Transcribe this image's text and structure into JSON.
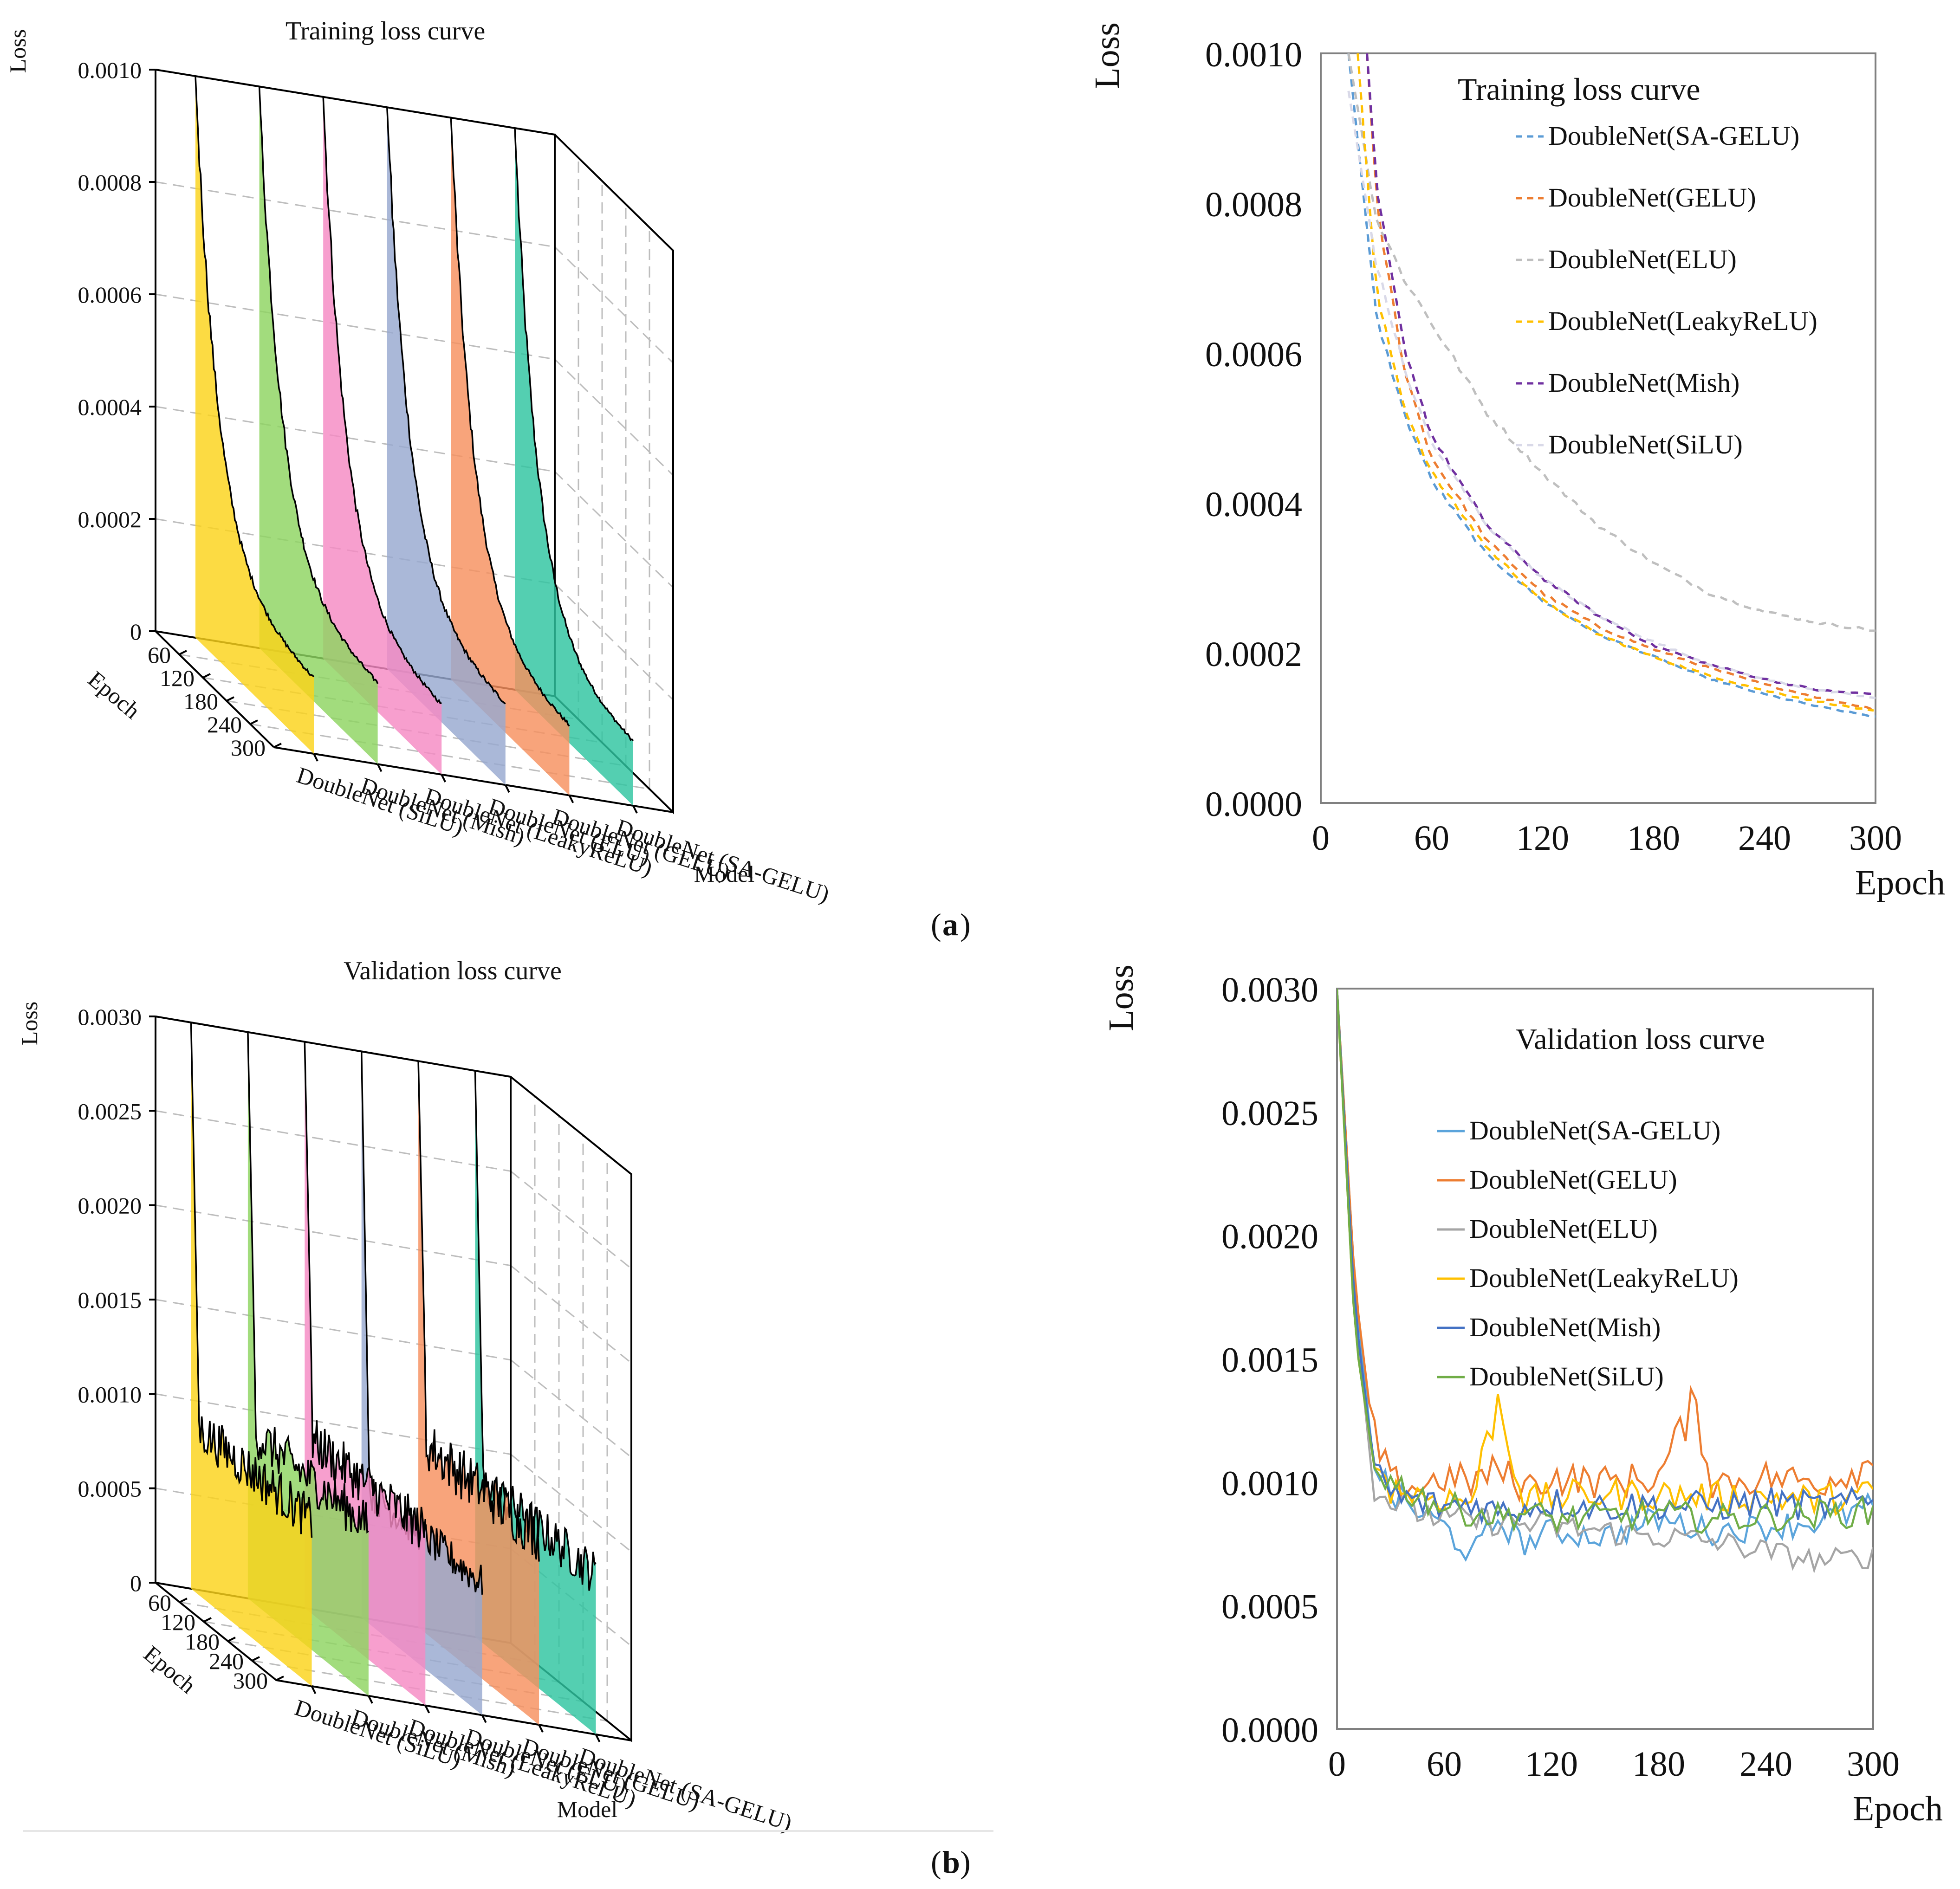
{
  "panel_labels": {
    "a": "a",
    "b": "b"
  },
  "chart_data": [
    {
      "id": "a3d",
      "type": "area",
      "title": "Training loss curve",
      "zlabel": "Loss",
      "xlabel": "Epoch",
      "ylabel": "Model",
      "zticks": [
        "0",
        "0.0002",
        "0.0004",
        "0.0006",
        "0.0008",
        "0.0010"
      ],
      "zlim": [
        0,
        0.001
      ],
      "epoch_ticks": [
        "60",
        "120",
        "180",
        "240",
        "300"
      ],
      "models": [
        {
          "name": "DoubleNet (SA-GELU)",
          "color": "#2EC4A0",
          "y0": 0.001,
          "yend": 0.00011
        },
        {
          "name": "DoubleNet (GELU)",
          "color": "#F7905E",
          "y0": 0.001,
          "yend": 0.00012
        },
        {
          "name": "DoubleNet (ELU)",
          "color": "#97A8D0",
          "y0": 0.001,
          "yend": 0.00014
        },
        {
          "name": "DoubleNet (LeakyReLU)",
          "color": "#F58AC3",
          "y0": 0.001,
          "yend": 0.00012
        },
        {
          "name": "DoubleNet (Mish)",
          "color": "#8ED460",
          "y0": 0.001,
          "yend": 0.00014
        },
        {
          "name": "DoubleNet (SiLU)",
          "color": "#FBD31A",
          "y0": 0.001,
          "yend": 0.00013
        }
      ]
    },
    {
      "id": "a2d",
      "type": "line",
      "title": "Training loss curve",
      "xlabel": "Epoch",
      "ylabel": "Loss",
      "xlim": [
        0,
        300
      ],
      "ylim": [
        0,
        0.001
      ],
      "xticks": [
        "0",
        "60",
        "120",
        "180",
        "240",
        "300"
      ],
      "yticks": [
        "0.0000",
        "0.0002",
        "0.0004",
        "0.0006",
        "0.0008",
        "0.0010"
      ],
      "dashed": true,
      "series": [
        {
          "name": "DoubleNet(SA-GELU)",
          "color": "#5B9BD5",
          "x": [
            15,
            30,
            45,
            60,
            90,
            120,
            150,
            180,
            210,
            240,
            270,
            300
          ],
          "values": [
            0.001,
            0.00065,
            0.00052,
            0.00043,
            0.00033,
            0.00027,
            0.000225,
            0.000195,
            0.000165,
            0.000145,
            0.000128,
            0.000115
          ]
        },
        {
          "name": "DoubleNet(GELU)",
          "color": "#ED7D31",
          "x": [
            25,
            30,
            45,
            60,
            90,
            120,
            150,
            180,
            210,
            240,
            270,
            300
          ],
          "values": [
            0.001,
            0.0008,
            0.00058,
            0.00046,
            0.00035,
            0.00028,
            0.000235,
            0.000205,
            0.00018,
            0.000158,
            0.00014,
            0.000125
          ]
        },
        {
          "name": "DoubleNet(ELU)",
          "color": "#BFBFBF",
          "x": [
            15,
            30,
            45,
            60,
            90,
            120,
            150,
            180,
            210,
            240,
            270,
            300
          ],
          "values": [
            0.001,
            0.00078,
            0.0007,
            0.00064,
            0.00052,
            0.00044,
            0.00037,
            0.00032,
            0.00028,
            0.000255,
            0.00024,
            0.00023
          ]
        },
        {
          "name": "DoubleNet(LeakyReLU)",
          "color": "#FFC000",
          "x": [
            20,
            30,
            45,
            60,
            90,
            120,
            150,
            180,
            210,
            240,
            270,
            300
          ],
          "values": [
            0.001,
            0.00068,
            0.00053,
            0.00044,
            0.00034,
            0.00027,
            0.000225,
            0.000195,
            0.00017,
            0.00015,
            0.000135,
            0.000122
          ]
        },
        {
          "name": "DoubleNet(Mish)",
          "color": "#7030A0",
          "x": [
            25,
            30,
            45,
            60,
            90,
            120,
            150,
            180,
            210,
            240,
            270,
            300
          ],
          "values": [
            0.001,
            0.00082,
            0.00061,
            0.00049,
            0.00037,
            0.0003,
            0.00025,
            0.00021,
            0.000185,
            0.000165,
            0.00015,
            0.000145
          ]
        },
        {
          "name": "DoubleNet(SiLU)",
          "color": "#D9D9E8",
          "x": [
            15,
            30,
            45,
            60,
            90,
            120,
            150,
            180,
            210,
            240,
            270,
            300
          ],
          "values": [
            0.00095,
            0.00072,
            0.00058,
            0.00048,
            0.00037,
            0.0003,
            0.00025,
            0.000215,
            0.000185,
            0.000165,
            0.00015,
            0.00014
          ]
        }
      ]
    },
    {
      "id": "b3d",
      "type": "area",
      "title": "Validation loss curve",
      "zlabel": "Loss",
      "xlabel": "Epoch",
      "ylabel": "Model",
      "zticks": [
        "0",
        "0.0005",
        "0.0010",
        "0.0015",
        "0.0020",
        "0.0025",
        "0.0030"
      ],
      "zlim": [
        0,
        0.003
      ],
      "epoch_ticks": [
        "60",
        "120",
        "180",
        "240",
        "300"
      ],
      "models": [
        {
          "name": "DoubleNet (SA-GELU)",
          "color": "#2EC4A0",
          "y0": 0.003,
          "yend": 0.00085
        },
        {
          "name": "DoubleNet (GELU)",
          "color": "#F7905E",
          "y0": 0.003,
          "yend": 0.001
        },
        {
          "name": "DoubleNet (ELU)",
          "color": "#97A8D0",
          "y0": 0.003,
          "yend": 0.0007
        },
        {
          "name": "DoubleNet (LeakyReLU)",
          "color": "#F58AC3",
          "y0": 0.003,
          "yend": 0.00092
        },
        {
          "name": "DoubleNet (Mish)",
          "color": "#8ED460",
          "y0": 0.003,
          "yend": 0.0009
        },
        {
          "name": "DoubleNet (SiLU)",
          "color": "#FBD31A",
          "y0": 0.003,
          "yend": 0.00088
        }
      ]
    },
    {
      "id": "b2d",
      "type": "line",
      "title": "Validation loss curve",
      "xlabel": "Epoch",
      "ylabel": "Loss",
      "xlim": [
        0,
        300
      ],
      "ylim": [
        0,
        0.003
      ],
      "xticks": [
        "0",
        "60",
        "120",
        "180",
        "240",
        "300"
      ],
      "yticks": [
        "0.0000",
        "0.0005",
        "0.0010",
        "0.0015",
        "0.0020",
        "0.0025",
        "0.0030"
      ],
      "dashed": false,
      "series": [
        {
          "name": "DoubleNet(SA-GELU)",
          "color": "#5BA4DB",
          "x": [
            0,
            10,
            20,
            30,
            45,
            60,
            75,
            90,
            105,
            120,
            150,
            180,
            210,
            240,
            270,
            300
          ],
          "values": [
            0.003,
            0.0018,
            0.0011,
            0.00095,
            0.00088,
            0.00082,
            0.0007,
            0.00085,
            0.00075,
            0.0008,
            0.00078,
            0.00085,
            0.0008,
            0.00082,
            0.00084,
            0.0009
          ]
        },
        {
          "name": "DoubleNet(GELU)",
          "color": "#ED7D31",
          "x": [
            0,
            10,
            20,
            30,
            45,
            60,
            75,
            90,
            105,
            120,
            150,
            180,
            200,
            210,
            240,
            270,
            300
          ],
          "values": [
            0.003,
            0.0018,
            0.0012,
            0.001,
            0.00098,
            0.00102,
            0.001,
            0.00105,
            0.00098,
            0.00102,
            0.001,
            0.00102,
            0.00132,
            0.001,
            0.00102,
            0.001,
            0.00108
          ]
        },
        {
          "name": "DoubleNet(ELU)",
          "color": "#A5A5A5",
          "x": [
            0,
            10,
            20,
            30,
            45,
            60,
            90,
            120,
            150,
            180,
            210,
            240,
            270,
            300
          ],
          "values": [
            0.003,
            0.0017,
            0.001,
            0.00092,
            0.00088,
            0.00085,
            0.00084,
            0.00082,
            0.0008,
            0.00078,
            0.00076,
            0.00072,
            0.00068,
            0.0007
          ]
        },
        {
          "name": "DoubleNet(LeakyReLU)",
          "color": "#FFC000",
          "x": [
            0,
            10,
            20,
            30,
            45,
            60,
            75,
            90,
            105,
            120,
            150,
            180,
            210,
            240,
            270,
            300
          ],
          "values": [
            0.003,
            0.0016,
            0.0011,
            0.00098,
            0.00095,
            0.00094,
            0.00092,
            0.00133,
            0.00092,
            0.00094,
            0.00095,
            0.00095,
            0.00094,
            0.00094,
            0.00093,
            0.00095
          ]
        },
        {
          "name": "DoubleNet(Mish)",
          "color": "#4472C4",
          "x": [
            0,
            10,
            20,
            30,
            45,
            60,
            75,
            90,
            105,
            120,
            150,
            180,
            210,
            240,
            270,
            300
          ],
          "values": [
            0.003,
            0.0017,
            0.0011,
            0.00095,
            0.00092,
            0.0009,
            0.00092,
            0.00088,
            0.0009,
            0.00092,
            0.0009,
            0.00091,
            0.0009,
            0.00092,
            0.0009,
            0.00092
          ]
        },
        {
          "name": "DoubleNet(SiLU)",
          "color": "#70AD47",
          "x": [
            0,
            10,
            20,
            30,
            45,
            60,
            75,
            90,
            105,
            120,
            150,
            180,
            210,
            240,
            270,
            300
          ],
          "values": [
            0.003,
            0.0016,
            0.0011,
            0.001,
            0.00095,
            0.0009,
            0.00088,
            0.00086,
            0.00088,
            0.00085,
            0.00086,
            0.00087,
            0.00085,
            0.00086,
            0.00087,
            0.00088
          ]
        }
      ]
    }
  ]
}
